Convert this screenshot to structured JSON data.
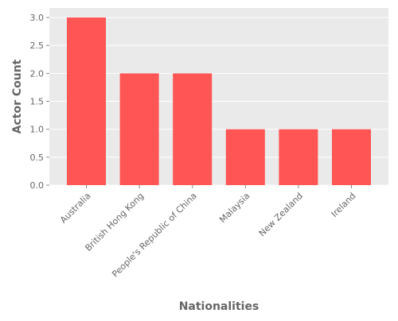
{
  "chart_data": {
    "type": "bar",
    "title": "",
    "xlabel": "Nationalities",
    "ylabel": "Actor Count",
    "categories": [
      "Australia",
      "British Hong Kong",
      "People's Republic of China",
      "Malaysia",
      "New Zealand",
      "Ireland"
    ],
    "values": [
      3,
      2,
      2,
      1,
      1,
      1
    ],
    "ylim": [
      0,
      3.0
    ],
    "yticks": [
      0,
      0.5,
      1.0,
      1.5,
      2.0,
      2.5,
      3.0
    ],
    "ytick_labels": [
      "0.0",
      "0.5",
      "1.0",
      "1.5",
      "2.0",
      "2.5",
      "3.0"
    ],
    "grid": "horizontal",
    "legend": "none",
    "colors": {
      "bar": "#FF5555",
      "panel_background": "#EAEAEA",
      "grid": "#FFFFFF",
      "text": "#666666",
      "label": "#666666"
    }
  }
}
